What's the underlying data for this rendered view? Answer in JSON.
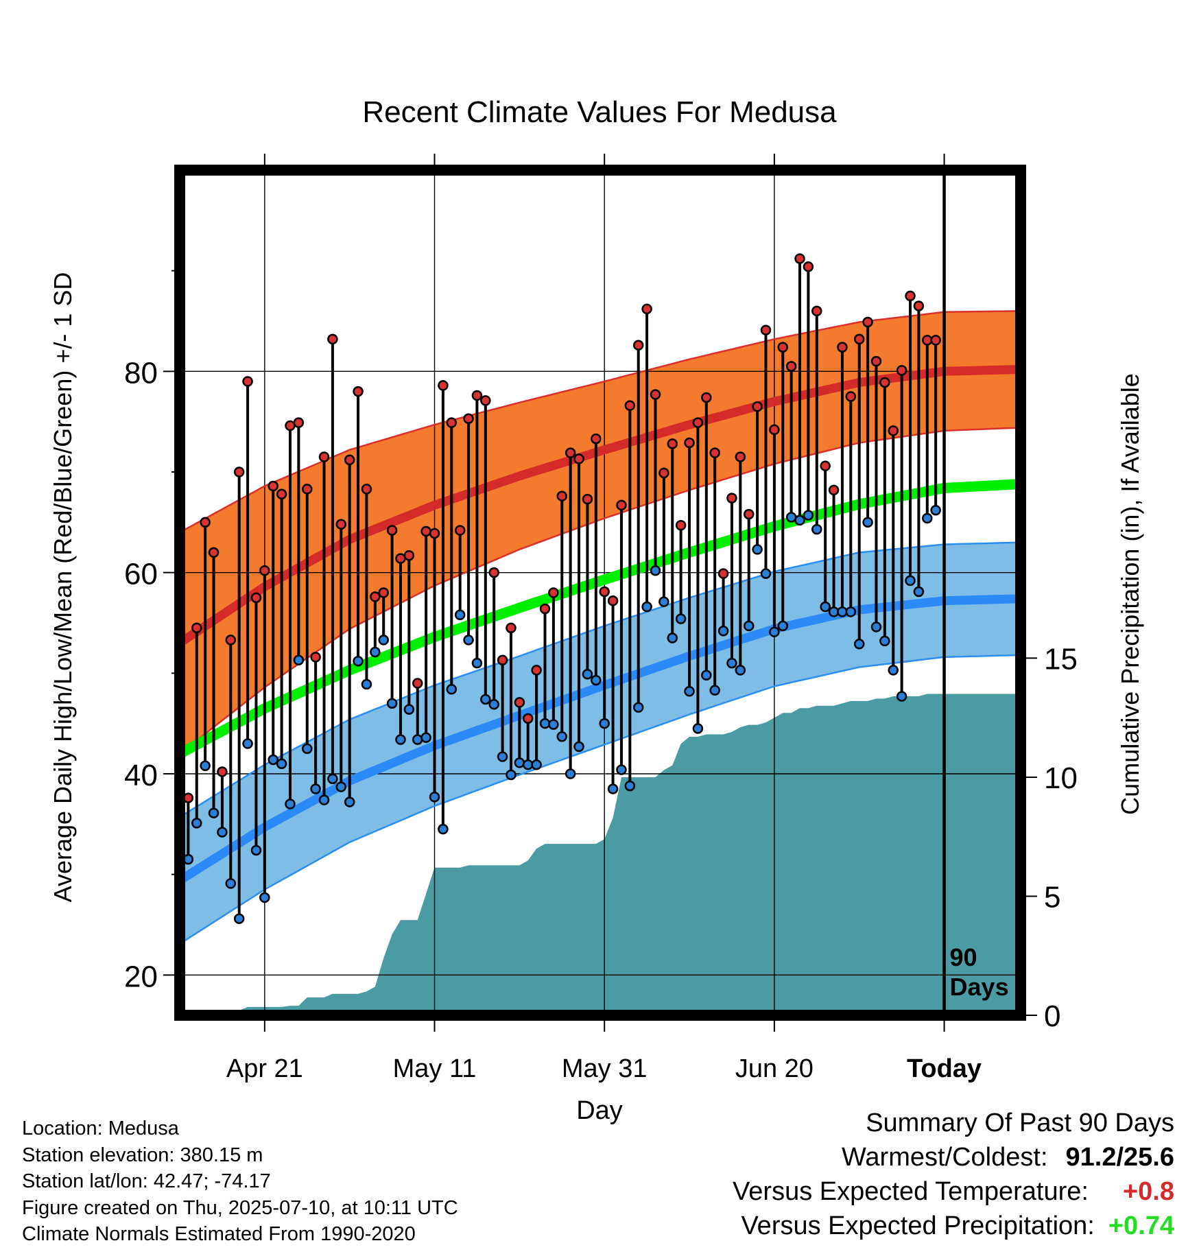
{
  "chart_data": {
    "type": "line",
    "title": "Recent Climate Values For Medusa",
    "xlabel": "Day",
    "ylabel": "Average Daily High/Low/Mean (Red/Blue/Green) +/- 1 SD",
    "y2label": "Cumulative Precipitation (in), If Available",
    "ylim": [
      16,
      100
    ],
    "y2lim": [
      0,
      35.5
    ],
    "y_ticks": [
      20,
      40,
      60,
      80
    ],
    "y2_ticks": [
      0,
      5,
      10,
      15
    ],
    "x_tick_days": [
      10,
      30,
      50,
      70,
      90
    ],
    "x_tick_labels": [
      "Apr 21",
      "May 11",
      "May 31",
      "Jun 20",
      "Today"
    ],
    "x_range_days": [
      0,
      99
    ],
    "today_day": 90,
    "today_label": "90 Days",
    "grid": true,
    "colors": {
      "high_band": "#f47a2e",
      "high_band_edge": "#d9302c",
      "high_mean": "#d42a2a",
      "low_band": "#7ebde6",
      "low_band_edge": "#2a8ff0",
      "low_mean": "#2b8af5",
      "mean_line": "#00ee00",
      "precip": "#4a9ba4",
      "point_high": "#d93232",
      "point_low": "#2b7fd6"
    },
    "normals": {
      "day": [
        0,
        10,
        20,
        30,
        40,
        50,
        60,
        70,
        80,
        90,
        99
      ],
      "high_mean": [
        53.0,
        58.6,
        63.3,
        66.7,
        69.6,
        72.2,
        74.7,
        77.0,
        78.9,
        80.0,
        80.2
      ],
      "high_sd": [
        11.0,
        10.0,
        8.9,
        8.0,
        7.3,
        6.8,
        6.5,
        6.2,
        6.0,
        5.9,
        5.8
      ],
      "low_mean": [
        29.4,
        34.7,
        39.3,
        42.8,
        45.8,
        48.8,
        51.7,
        54.4,
        56.3,
        57.2,
        57.4
      ],
      "low_sd": [
        6.3,
        6.2,
        6.1,
        6.0,
        5.9,
        5.9,
        5.8,
        5.7,
        5.7,
        5.6,
        5.6
      ],
      "mean": [
        42.0,
        46.5,
        50.3,
        53.6,
        56.5,
        59.3,
        62.0,
        64.6,
        66.8,
        68.4,
        68.8
      ]
    },
    "daily": {
      "day": [
        0,
        1,
        2,
        3,
        4,
        5,
        6,
        7,
        8,
        9,
        10,
        11,
        12,
        13,
        14,
        15,
        16,
        17,
        18,
        19,
        20,
        21,
        22,
        23,
        24,
        25,
        26,
        27,
        28,
        29,
        30,
        31,
        32,
        33,
        34,
        35,
        36,
        37,
        38,
        39,
        40,
        41,
        42,
        43,
        44,
        45,
        46,
        47,
        48,
        49,
        50,
        51,
        52,
        53,
        54,
        55,
        56,
        57,
        58,
        59,
        60,
        61,
        62,
        63,
        64,
        65,
        66,
        67,
        68,
        69,
        70,
        71,
        72,
        73,
        74,
        75,
        76,
        77,
        78,
        79,
        80,
        81,
        82,
        83,
        84,
        85,
        86,
        87,
        88,
        89
      ],
      "high": [
        47.1,
        37.6,
        54.5,
        65.0,
        62.0,
        40.2,
        53.3,
        70.0,
        79.0,
        57.5,
        60.2,
        68.6,
        67.8,
        74.6,
        74.9,
        68.3,
        51.6,
        71.5,
        83.2,
        64.8,
        71.2,
        78.0,
        68.3,
        57.6,
        58.0,
        64.2,
        61.4,
        61.7,
        49.0,
        64.1,
        63.9,
        78.6,
        74.9,
        64.2,
        75.3,
        77.6,
        77.1,
        60.0,
        51.3,
        54.5,
        47.1,
        45.5,
        50.3,
        56.4,
        58.0,
        67.6,
        71.9,
        71.3,
        67.3,
        73.3,
        58.1,
        57.2,
        66.7,
        76.6,
        82.6,
        86.2,
        77.7,
        69.9,
        72.8,
        64.7,
        72.9,
        74.9,
        77.4,
        71.9,
        59.9,
        67.4,
        71.5,
        65.8,
        76.5,
        84.1,
        74.2,
        82.4,
        80.5,
        91.2,
        90.4,
        86.0,
        70.6,
        68.2,
        82.4,
        77.5,
        83.2,
        84.9,
        81.0,
        78.9,
        74.1,
        80.1,
        87.5,
        86.5,
        83.1,
        83.1
      ],
      "low": [
        31.1,
        31.5,
        35.1,
        40.8,
        36.1,
        34.2,
        29.1,
        25.6,
        43.0,
        32.4,
        27.7,
        41.4,
        41.0,
        37.0,
        51.3,
        42.5,
        38.5,
        37.4,
        39.5,
        38.7,
        37.2,
        51.2,
        48.9,
        52.1,
        53.3,
        47.0,
        43.4,
        46.4,
        43.4,
        43.6,
        37.7,
        34.5,
        48.4,
        55.8,
        53.3,
        51.0,
        47.4,
        46.9,
        41.7,
        39.9,
        41.1,
        40.9,
        40.9,
        45.0,
        44.9,
        43.7,
        40.0,
        42.7,
        49.9,
        49.3,
        45.0,
        38.5,
        40.4,
        38.8,
        46.6,
        56.6,
        60.2,
        57.1,
        53.5,
        55.4,
        48.2,
        44.5,
        49.8,
        48.3,
        54.2,
        51.0,
        50.3,
        54.7,
        62.3,
        59.9,
        54.1,
        54.7,
        65.5,
        65.2,
        65.7,
        64.3,
        56.6,
        56.1,
        56.1,
        56.1,
        52.9,
        65.0,
        54.6,
        53.2,
        50.3,
        47.7,
        59.2,
        58.1,
        65.4,
        66.2
      ]
    },
    "precip": {
      "day": [
        0,
        1,
        2,
        3,
        4,
        5,
        6,
        7,
        8,
        9,
        10,
        11,
        12,
        13,
        14,
        15,
        16,
        17,
        18,
        19,
        20,
        21,
        22,
        23,
        24,
        25,
        26,
        27,
        28,
        29,
        30,
        31,
        32,
        33,
        34,
        35,
        36,
        37,
        38,
        39,
        40,
        41,
        42,
        43,
        44,
        45,
        46,
        47,
        48,
        49,
        50,
        51,
        52,
        53,
        54,
        55,
        56,
        57,
        58,
        59,
        60,
        61,
        62,
        63,
        64,
        65,
        66,
        67,
        68,
        69,
        70,
        71,
        72,
        73,
        74,
        75,
        76,
        77,
        78,
        79,
        80,
        81,
        82,
        83,
        84,
        85,
        86,
        87,
        88,
        89,
        90,
        99
      ],
      "values": [
        0,
        0,
        0.1,
        0.1,
        0.2,
        0.2,
        0.2,
        0.2,
        0.35,
        0.35,
        0.35,
        0.35,
        0.35,
        0.4,
        0.4,
        0.75,
        0.75,
        0.75,
        0.9,
        0.9,
        0.9,
        0.9,
        1.0,
        1.2,
        2.4,
        3.4,
        4.0,
        4.0,
        4.0,
        5.1,
        6.2,
        6.2,
        6.2,
        6.2,
        6.3,
        6.3,
        6.3,
        6.3,
        6.3,
        6.3,
        6.3,
        6.5,
        7.0,
        7.2,
        7.2,
        7.2,
        7.2,
        7.2,
        7.2,
        7.2,
        7.4,
        8.3,
        10.0,
        10.0,
        10.0,
        10.0,
        10.0,
        10.3,
        10.5,
        11.4,
        11.7,
        11.7,
        11.8,
        11.8,
        11.8,
        11.9,
        12.1,
        12.2,
        12.2,
        12.3,
        12.5,
        12.7,
        12.7,
        12.9,
        12.9,
        13.0,
        13.0,
        13.0,
        13.1,
        13.2,
        13.2,
        13.2,
        13.3,
        13.3,
        13.4,
        13.4,
        13.4,
        13.4,
        13.5,
        13.5,
        13.5,
        13.5
      ]
    }
  },
  "info": {
    "location": "Location: Medusa",
    "elevation": "Station elevation: 380.15 m",
    "latlon": "Station lat/lon: 42.47; -74.17",
    "created": "Figure created on Thu, 2025-07-10, at 10:11 UTC",
    "normals": "Climate Normals Estimated From 1990-2020"
  },
  "summary": {
    "heading": "Summary Of Past 90 Days",
    "warm_cold_label": "Warmest/Coldest:",
    "warm_cold_value": "91.2/25.6",
    "temp_label": "Versus Expected Temperature:",
    "temp_value": "+0.8",
    "temp_color": "#d42a2a",
    "precip_label": "Versus Expected Precipitation:",
    "precip_value": "+0.74",
    "precip_color": "#22dd22"
  }
}
